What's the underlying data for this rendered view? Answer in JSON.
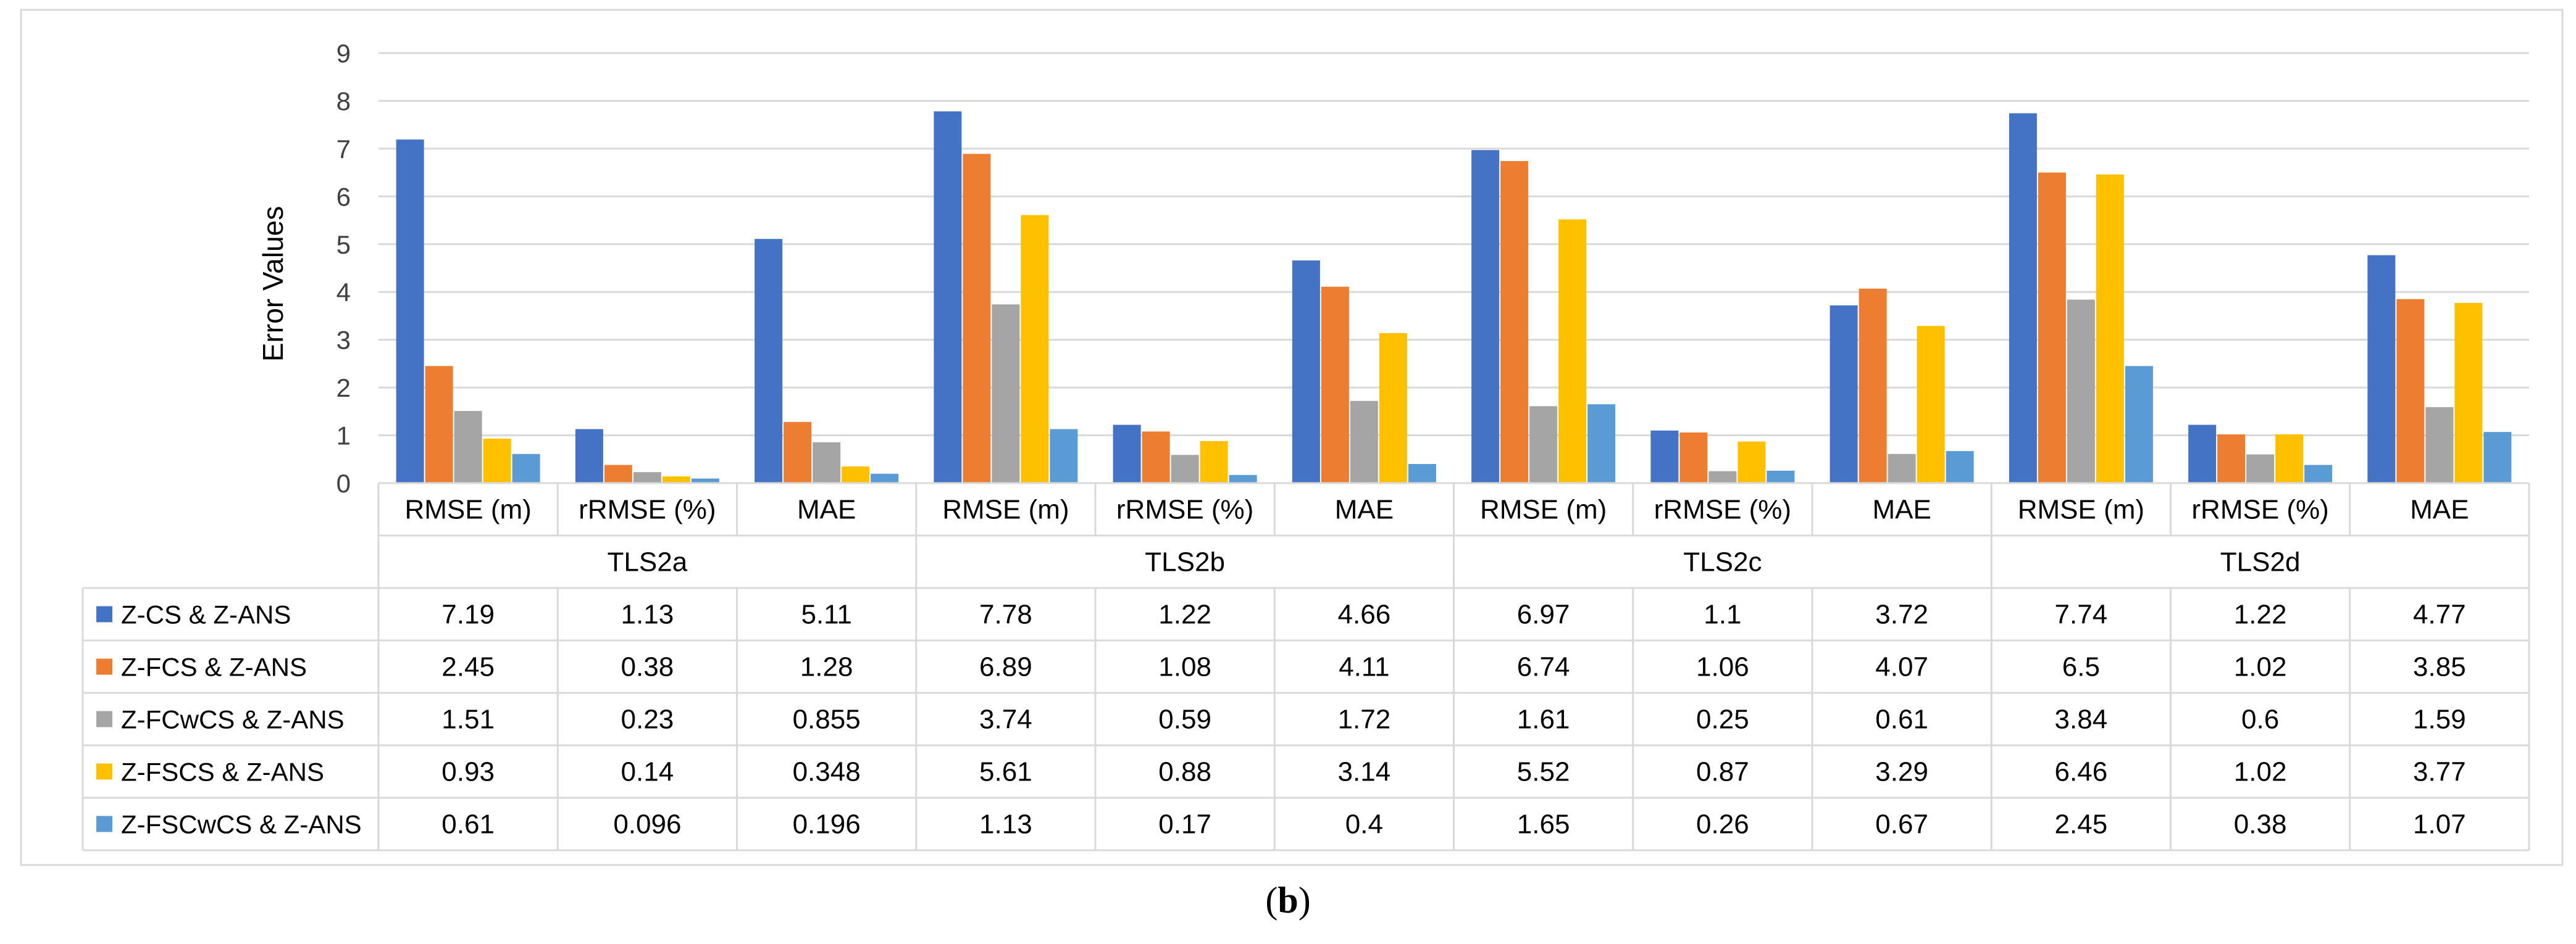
{
  "chart_data": {
    "type": "bar",
    "ylabel": "Error Values",
    "ylim": [
      0,
      9
    ],
    "yticks": [
      0,
      1,
      2,
      3,
      4,
      5,
      6,
      7,
      8,
      9
    ],
    "grid": true,
    "groups": [
      "TLS2a",
      "TLS2b",
      "TLS2c",
      "TLS2d"
    ],
    "metrics": [
      "RMSE (m)",
      "rRMSE (%)",
      "MAE"
    ],
    "categories": [
      "RMSE (m)",
      "rRMSE (%)",
      "MAE",
      "RMSE (m)",
      "rRMSE (%)",
      "MAE",
      "RMSE (m)",
      "rRMSE (%)",
      "MAE",
      "RMSE (m)",
      "rRMSE (%)",
      "MAE"
    ],
    "series": [
      {
        "name": "Z-CS & Z-ANS",
        "color": "#4472C4",
        "values": [
          7.19,
          1.13,
          5.11,
          7.78,
          1.22,
          4.66,
          6.97,
          1.1,
          3.72,
          7.74,
          1.22,
          4.77
        ],
        "labels": [
          "7.19",
          "1.13",
          "5.11",
          "7.78",
          "1.22",
          "4.66",
          "6.97",
          "1.1",
          "3.72",
          "7.74",
          "1.22",
          "4.77"
        ]
      },
      {
        "name": "Z-FCS & Z-ANS",
        "color": "#ED7D31",
        "values": [
          2.45,
          0.38,
          1.28,
          6.89,
          1.08,
          4.11,
          6.74,
          1.06,
          4.07,
          6.5,
          1.02,
          3.85
        ],
        "labels": [
          "2.45",
          "0.38",
          "1.28",
          "6.89",
          "1.08",
          "4.11",
          "6.74",
          "1.06",
          "4.07",
          "6.5",
          "1.02",
          "3.85"
        ]
      },
      {
        "name": "Z-FCwCS & Z-ANS",
        "color": "#A5A5A5",
        "values": [
          1.51,
          0.23,
          0.855,
          3.74,
          0.59,
          1.72,
          1.61,
          0.25,
          0.61,
          3.84,
          0.6,
          1.59
        ],
        "labels": [
          "1.51",
          "0.23",
          "0.855",
          "3.74",
          "0.59",
          "1.72",
          "1.61",
          "0.25",
          "0.61",
          "3.84",
          "0.6",
          "1.59"
        ]
      },
      {
        "name": "Z-FSCS & Z-ANS",
        "color": "#FFC000",
        "values": [
          0.93,
          0.14,
          0.348,
          5.61,
          0.88,
          3.14,
          5.52,
          0.87,
          3.29,
          6.46,
          1.02,
          3.77
        ],
        "labels": [
          "0.93",
          "0.14",
          "0.348",
          "5.61",
          "0.88",
          "3.14",
          "5.52",
          "0.87",
          "3.29",
          "6.46",
          "1.02",
          "3.77"
        ]
      },
      {
        "name": "Z-FSCwCS & Z-ANS",
        "color": "#5B9BD5",
        "values": [
          0.61,
          0.096,
          0.196,
          1.13,
          0.17,
          0.4,
          1.65,
          0.26,
          0.67,
          2.45,
          0.38,
          1.07
        ],
        "labels": [
          "0.61",
          "0.096",
          "0.196",
          "1.13",
          "0.17",
          "0.4",
          "1.65",
          "0.26",
          "0.67",
          "2.45",
          "0.38",
          "1.07"
        ]
      }
    ]
  },
  "caption": {
    "open": "(",
    "letter": "b",
    "close": ")"
  }
}
